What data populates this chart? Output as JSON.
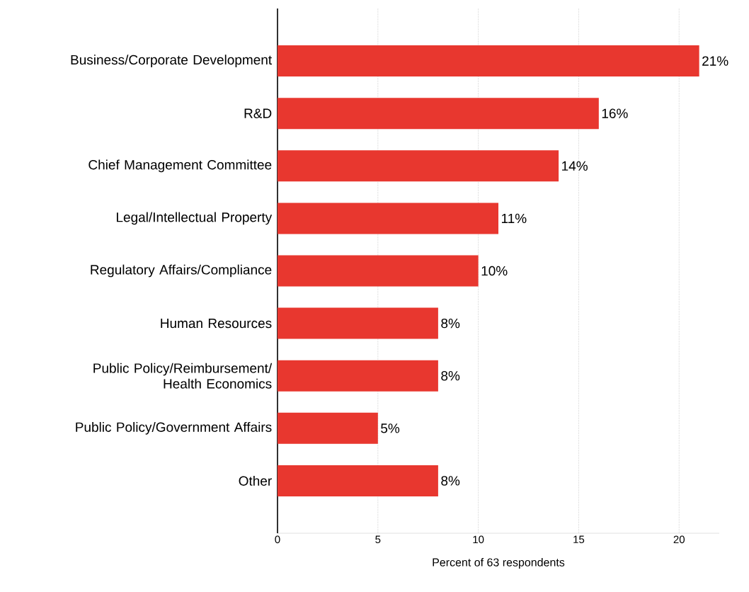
{
  "chart_data": {
    "type": "bar",
    "orientation": "horizontal",
    "xlabel": "Percent of 63 respondents",
    "categories": [
      "Business/Corporate Development",
      "R&D",
      "Chief Management Committee",
      "Legal/Intellectual Property",
      "Regulatory Affairs/Compliance",
      "Human Resources",
      "Public Policy/Reimbursement/ Health Economics",
      "Public Policy/Government Affairs",
      "Other"
    ],
    "values": [
      21,
      16,
      14,
      11,
      10,
      8,
      8,
      5,
      8
    ],
    "value_labels": [
      "21%",
      "16%",
      "14%",
      "11%",
      "10%",
      "8%",
      "8%",
      "5%",
      "8%"
    ],
    "color": "#e8372f",
    "xlim": [
      0,
      22
    ],
    "xticks": [
      0,
      5,
      10,
      15,
      20
    ],
    "grid": "x"
  }
}
